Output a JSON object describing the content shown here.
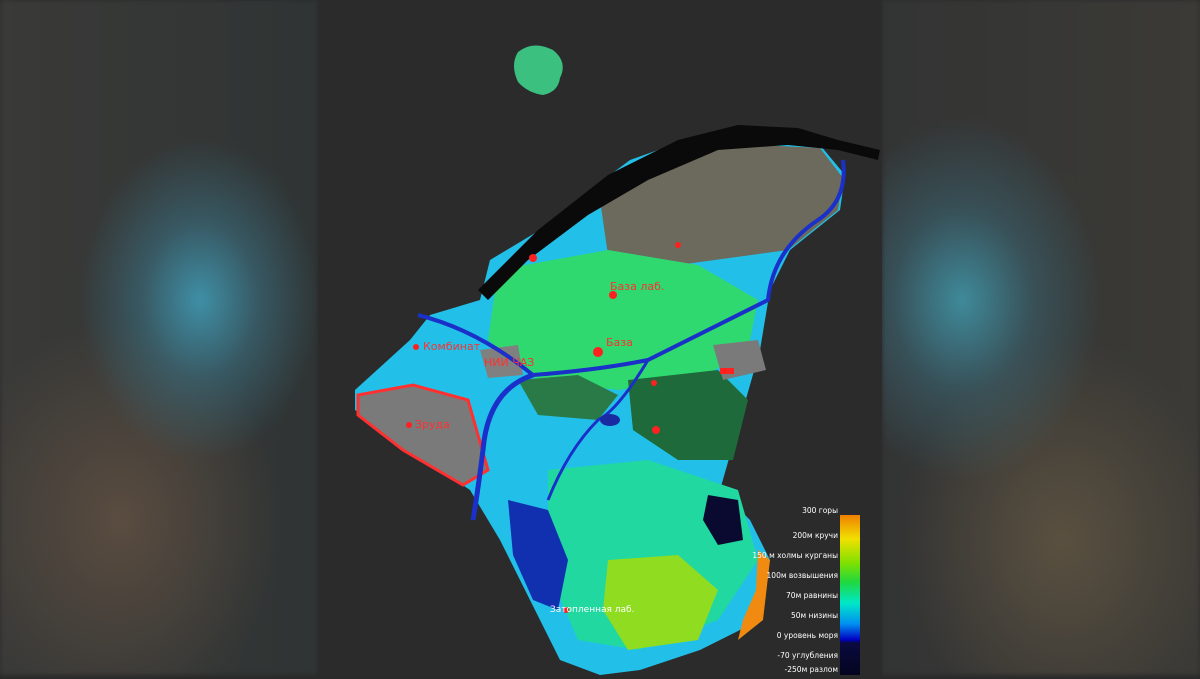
{
  "map": {
    "labels": {
      "base_lab": "База лаб.",
      "base": "База",
      "combine": "Комбинат",
      "nii": "НИИ ЧАЗ",
      "zruda": "Зруда",
      "flooded_lab": "Затопленная лаб."
    }
  },
  "legend": {
    "items": [
      {
        "label": "300 горы",
        "color": "#f08000"
      },
      {
        "label": "200м кручи",
        "color": "#f0e000"
      },
      {
        "label": "150 м холмы курганы",
        "color": "#80e000"
      },
      {
        "label": "100м возвышения",
        "color": "#20d840"
      },
      {
        "label": "70м равнины",
        "color": "#00e8c8"
      },
      {
        "label": "50м низины",
        "color": "#0090f0"
      },
      {
        "label": "0 уровень моря",
        "color": "#0000c0"
      },
      {
        "label": "-70 углубления",
        "color": "#0a0a40"
      },
      {
        "label": "-250м разлом",
        "color": "#050520"
      }
    ]
  }
}
